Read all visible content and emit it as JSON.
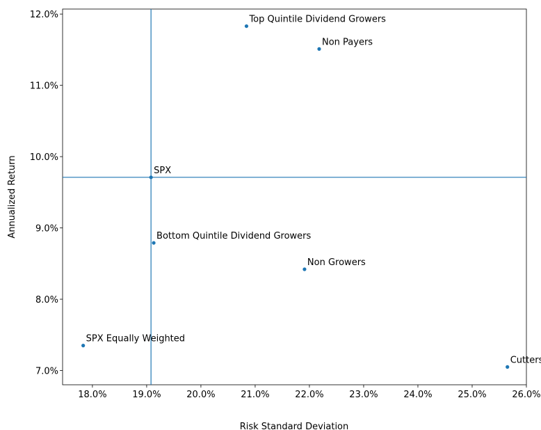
{
  "chart_data": {
    "type": "scatter",
    "title": "",
    "xlabel": "Risk Standard Deviation",
    "ylabel": "Annualized Return",
    "xlim": [
      17.45,
      26.0
    ],
    "ylim": [
      6.8,
      12.07
    ],
    "x_ticks": [
      18,
      19,
      20,
      21,
      22,
      23,
      24,
      25,
      26
    ],
    "x_tick_labels": [
      "18.0%",
      "19.0%",
      "20.0%",
      "21.0%",
      "22.0%",
      "23.0%",
      "24.0%",
      "25.0%",
      "26.0%"
    ],
    "y_ticks": [
      7,
      8,
      9,
      10,
      11,
      12
    ],
    "y_tick_labels": [
      "7.0%",
      "8.0%",
      "9.0%",
      "10.0%",
      "11.0%",
      "12.0%"
    ],
    "grid": false,
    "point_color": "#1f77b4",
    "reference_lines": {
      "x": 19.08,
      "y": 9.71,
      "color": "#1f77b4"
    },
    "points": [
      {
        "label": "Top Quintile Dividend Growers",
        "x": 20.84,
        "y": 11.83
      },
      {
        "label": "Non Payers",
        "x": 22.18,
        "y": 11.51
      },
      {
        "label": "SPX",
        "x": 19.08,
        "y": 9.71
      },
      {
        "label": "Bottom Quintile Dividend Growers",
        "x": 19.13,
        "y": 8.79
      },
      {
        "label": "Non Growers",
        "x": 21.91,
        "y": 8.42
      },
      {
        "label": "SPX Equally Weighted",
        "x": 17.83,
        "y": 7.35
      },
      {
        "label": "Cutters",
        "x": 25.65,
        "y": 7.05
      }
    ]
  }
}
